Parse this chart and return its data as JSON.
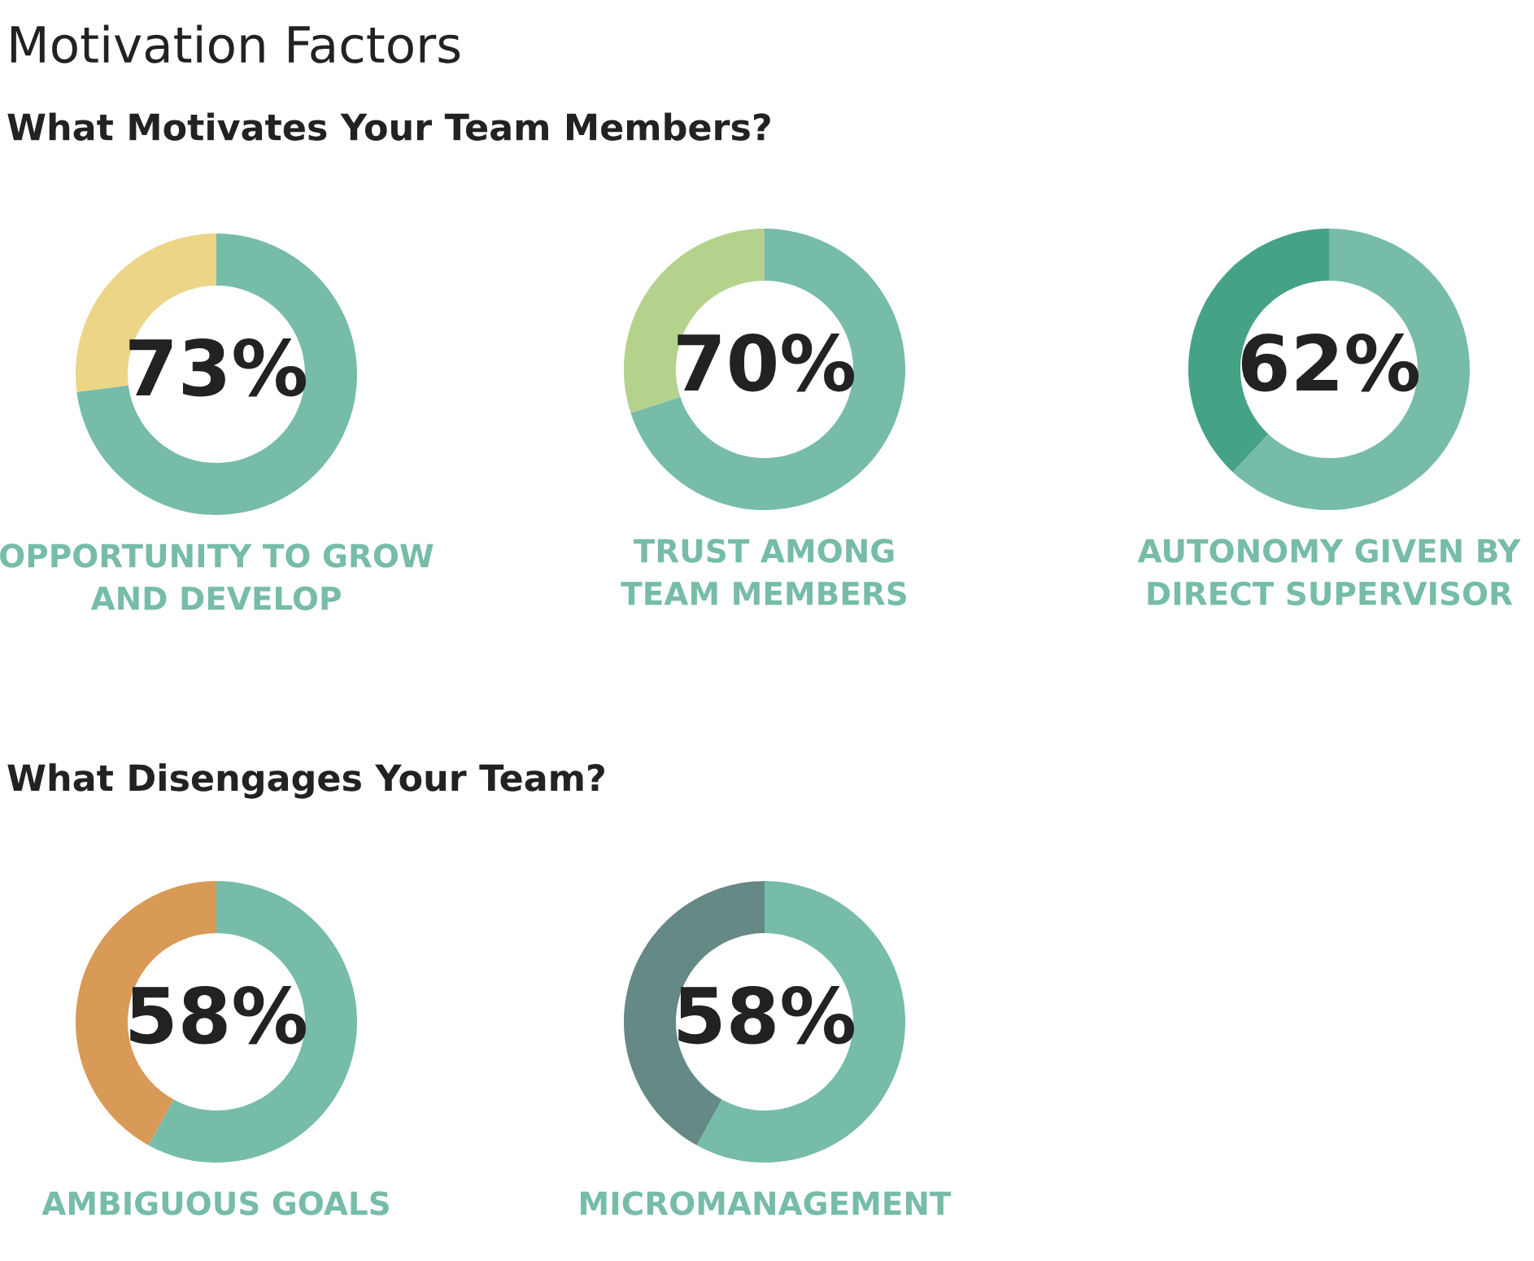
{
  "chart_data": [
    {
      "type": "donut",
      "title": "Motivation Factors",
      "subtitle": "What Motivates Your Team Members?",
      "categories": [
        "OPPORTUNITY TO GROW\nAND DEVELOP",
        null
      ],
      "values": [
        73,
        27
      ],
      "colors": [
        "#76bca9",
        "#edd588"
      ],
      "value_labels": [
        "73%",
        null
      ]
    },
    {
      "type": "donut",
      "categories": [
        "TRUST AMONG\nTEAM MEMBERS",
        null
      ],
      "values": [
        70,
        30
      ],
      "colors": [
        "#76bca9",
        "#b5d28d"
      ],
      "value_labels": [
        "70%",
        null
      ]
    },
    {
      "type": "donut",
      "categories": [
        "AUTONOMY GIVEN BY\nDIRECT SUPERVISOR",
        null
      ],
      "values": [
        62,
        38
      ],
      "colors": [
        "#76bca9",
        "#46a286"
      ],
      "value_labels": [
        "62%",
        null
      ]
    },
    {
      "type": "donut",
      "subtitle": "What Disengages Your Team?",
      "categories": [
        "AMBIGUOUS GOALS",
        null
      ],
      "values": [
        58,
        42
      ],
      "colors": [
        "#76bca9",
        "#d89a56"
      ],
      "value_labels": [
        "58%",
        null
      ]
    },
    {
      "type": "donut",
      "categories": [
        "MICROMANAGEMENT",
        null
      ],
      "values": [
        58,
        42
      ],
      "colors": [
        "#76bca9",
        "#658985"
      ],
      "value_labels": [
        "58%",
        null
      ]
    }
  ]
}
